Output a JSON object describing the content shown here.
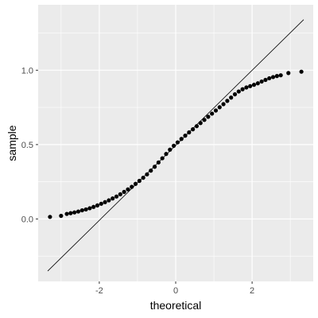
{
  "chart_data": {
    "type": "scatter",
    "title": "",
    "xlabel": "theoretical",
    "ylabel": "sample",
    "xlim": [
      -3.6,
      3.6
    ],
    "ylim": [
      -0.42,
      1.44
    ],
    "x_ticks": [
      -2,
      0,
      2
    ],
    "x_tick_labels": [
      "-2",
      "0",
      "2"
    ],
    "y_ticks": [
      0.0,
      0.5,
      1.0
    ],
    "y_tick_labels": [
      "0.0",
      "0.5",
      "1.0"
    ],
    "grid": true,
    "background_color": "#ebebeb",
    "grid_color": "#ffffff",
    "point_color": "#000000",
    "reference_line": {
      "x": [
        -3.35,
        3.35
      ],
      "y": [
        -0.35,
        1.34
      ],
      "color": "#000000"
    },
    "points": [
      {
        "x": -3.29,
        "y": 0.014
      },
      {
        "x": -3.0,
        "y": 0.021
      },
      {
        "x": -2.85,
        "y": 0.034
      },
      {
        "x": -2.75,
        "y": 0.039
      },
      {
        "x": -2.65,
        "y": 0.044
      },
      {
        "x": -2.55,
        "y": 0.05
      },
      {
        "x": -2.45,
        "y": 0.058
      },
      {
        "x": -2.35,
        "y": 0.064
      },
      {
        "x": -2.25,
        "y": 0.072
      },
      {
        "x": -2.15,
        "y": 0.081
      },
      {
        "x": -2.05,
        "y": 0.091
      },
      {
        "x": -1.95,
        "y": 0.102
      },
      {
        "x": -1.85,
        "y": 0.113
      },
      {
        "x": -1.75,
        "y": 0.125
      },
      {
        "x": -1.65,
        "y": 0.138
      },
      {
        "x": -1.55,
        "y": 0.151
      },
      {
        "x": -1.45,
        "y": 0.166
      },
      {
        "x": -1.35,
        "y": 0.182
      },
      {
        "x": -1.25,
        "y": 0.199
      },
      {
        "x": -1.15,
        "y": 0.216
      },
      {
        "x": -1.05,
        "y": 0.236
      },
      {
        "x": -0.95,
        "y": 0.256
      },
      {
        "x": -0.85,
        "y": 0.277
      },
      {
        "x": -0.75,
        "y": 0.3
      },
      {
        "x": -0.65,
        "y": 0.325
      },
      {
        "x": -0.55,
        "y": 0.351
      },
      {
        "x": -0.45,
        "y": 0.38
      },
      {
        "x": -0.35,
        "y": 0.408
      },
      {
        "x": -0.25,
        "y": 0.437
      },
      {
        "x": -0.15,
        "y": 0.466
      },
      {
        "x": -0.05,
        "y": 0.492
      },
      {
        "x": 0.05,
        "y": 0.515
      },
      {
        "x": 0.15,
        "y": 0.538
      },
      {
        "x": 0.25,
        "y": 0.56
      },
      {
        "x": 0.35,
        "y": 0.582
      },
      {
        "x": 0.45,
        "y": 0.603
      },
      {
        "x": 0.55,
        "y": 0.624
      },
      {
        "x": 0.65,
        "y": 0.645
      },
      {
        "x": 0.75,
        "y": 0.666
      },
      {
        "x": 0.85,
        "y": 0.687
      },
      {
        "x": 0.95,
        "y": 0.708
      },
      {
        "x": 1.05,
        "y": 0.729
      },
      {
        "x": 1.15,
        "y": 0.751
      },
      {
        "x": 1.25,
        "y": 0.772
      },
      {
        "x": 1.35,
        "y": 0.794
      },
      {
        "x": 1.45,
        "y": 0.816
      },
      {
        "x": 1.55,
        "y": 0.838
      },
      {
        "x": 1.65,
        "y": 0.857
      },
      {
        "x": 1.75,
        "y": 0.872
      },
      {
        "x": 1.85,
        "y": 0.884
      },
      {
        "x": 1.95,
        "y": 0.893
      },
      {
        "x": 2.05,
        "y": 0.902
      },
      {
        "x": 2.15,
        "y": 0.912
      },
      {
        "x": 2.25,
        "y": 0.924
      },
      {
        "x": 2.35,
        "y": 0.935
      },
      {
        "x": 2.45,
        "y": 0.946
      },
      {
        "x": 2.55,
        "y": 0.954
      },
      {
        "x": 2.65,
        "y": 0.961
      },
      {
        "x": 2.75,
        "y": 0.966
      },
      {
        "x": 2.95,
        "y": 0.981
      },
      {
        "x": 3.29,
        "y": 0.99
      }
    ]
  }
}
